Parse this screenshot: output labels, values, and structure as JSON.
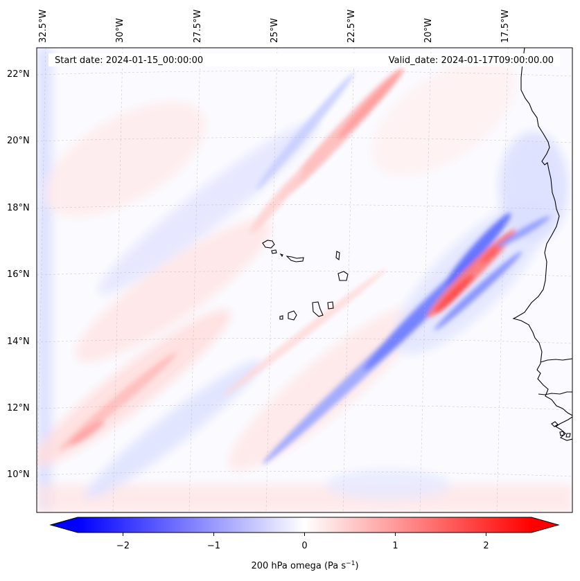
{
  "header": {
    "start_date": "Start date: 2024-01-15_00:00:00",
    "valid_date": "Valid_date: 2024-01-17T09:00:00.00"
  },
  "lon_labels": [
    "32.5°W",
    "30°W",
    "27.5°W",
    "25°W",
    "22.5°W",
    "20°W",
    "17.5°W"
  ],
  "lat_labels": [
    "22°N",
    "20°N",
    "18°N",
    "16°N",
    "14°N",
    "12°N",
    "10°N"
  ],
  "colorbar": {
    "ticks": [
      "−2",
      "−1",
      "0",
      "1",
      "2"
    ],
    "tick_values": [
      -2,
      -1,
      0,
      1,
      2
    ],
    "range": [
      -2.5,
      2.5
    ],
    "label_main": "200 hPa omega (Pa s",
    "label_sup": "−1",
    "label_end": ")",
    "colors": {
      "negative": "#0000ff",
      "zero": "#ffffff",
      "positive": "#ff0000"
    }
  },
  "chart_data": {
    "type": "heatmap",
    "variable": "200 hPa omega",
    "units": "Pa s−1",
    "lon_range": [
      -33,
      -15.5
    ],
    "lat_range": [
      9,
      22.8
    ],
    "value_range": [
      -2.5,
      2.5
    ],
    "colormap": "bwr",
    "grid": true,
    "coastlines": true,
    "features": [
      {
        "kind": "positive band",
        "from": [
          -24.8,
          17.2
        ],
        "to": [
          -21.2,
          21.8
        ],
        "peak": 1.2
      },
      {
        "kind": "positive band",
        "from": [
          -19.2,
          14.6
        ],
        "to": [
          -16.6,
          17.0
        ],
        "peak": 2.2
      },
      {
        "kind": "negative band",
        "from": [
          -23.2,
          12.2
        ],
        "to": [
          -16.8,
          16.8
        ],
        "peak": -1.8
      },
      {
        "kind": "negative band",
        "from": [
          -24.0,
          18.5
        ],
        "to": [
          -22.2,
          21.5
        ],
        "peak": -0.4
      },
      {
        "kind": "positive band",
        "from": [
          -32.0,
          11.0
        ],
        "to": [
          -26.5,
          15.0
        ],
        "peak": 0.5
      }
    ]
  }
}
